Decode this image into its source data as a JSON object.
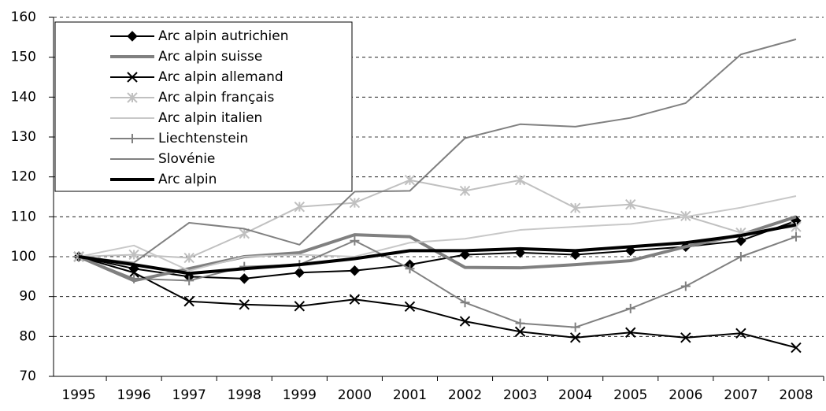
{
  "chart_data": {
    "type": "line",
    "categories": [
      "1995",
      "1996",
      "1997",
      "1998",
      "1999",
      "2000",
      "2001",
      "2002",
      "2003",
      "2004",
      "2005",
      "2006",
      "2007",
      "2008"
    ],
    "ylim": [
      70,
      160
    ],
    "yticks": [
      70,
      80,
      90,
      100,
      110,
      120,
      130,
      140,
      150,
      160
    ],
    "grid": true,
    "legend": "top-left",
    "series": [
      {
        "name": "Arc alpin autrichien",
        "color": "#000000",
        "width": 2,
        "marker": "diamond",
        "values": [
          100,
          97,
          95,
          94.5,
          96,
          96.5,
          98,
          100.5,
          101,
          100.5,
          101.5,
          102.5,
          104,
          109
        ]
      },
      {
        "name": "Arc alpin suisse",
        "color": "#808080",
        "width": 4,
        "marker": "none",
        "values": [
          100,
          94,
          97,
          100,
          101,
          105.5,
          105,
          97.3,
          97.2,
          98,
          99,
          102.5,
          105.5,
          110
        ]
      },
      {
        "name": "Arc alpin allemand",
        "color": "#000000",
        "width": 2,
        "marker": "x",
        "values": [
          100,
          96,
          88.8,
          88,
          87.6,
          89.3,
          87.5,
          83.8,
          81.2,
          79.7,
          81,
          79.7,
          80.8,
          77.2
        ]
      },
      {
        "name": "Arc alpin français",
        "color": "#c0c0c0",
        "width": 2,
        "marker": "asterisk",
        "values": [
          100,
          100.5,
          99.7,
          105.8,
          112.5,
          113.5,
          119.2,
          116.5,
          119.2,
          112.2,
          113.1,
          110.2,
          106,
          107.5
        ]
      },
      {
        "name": "Arc alpin italien",
        "color": "#c8c8c8",
        "width": 2,
        "marker": "none",
        "values": [
          100,
          102.8,
          96.5,
          100,
          100.5,
          100,
          103.5,
          104.5,
          106.7,
          107.5,
          108.2,
          110,
          112.3,
          115.2
        ]
      },
      {
        "name": "Liechtenstein",
        "color": "#808080",
        "width": 2,
        "marker": "plus",
        "values": [
          100,
          94.5,
          94,
          97.5,
          98,
          104,
          97,
          88.5,
          83.3,
          82.3,
          87,
          92.6,
          100,
          105
        ]
      },
      {
        "name": "Slovénie",
        "color": "#808080",
        "width": 2,
        "marker": "none",
        "values": [
          100,
          98.5,
          108.5,
          107,
          103,
          116.3,
          116.5,
          129.7,
          133.2,
          132.6,
          134.8,
          138.5,
          150.7,
          154.5
        ]
      },
      {
        "name": "Arc alpin",
        "color": "#000000",
        "width": 4,
        "marker": "none",
        "values": [
          100,
          98,
          95.8,
          97,
          98,
          99.5,
          101.5,
          101.5,
          102,
          101.5,
          102.5,
          103.5,
          105.3,
          108
        ]
      }
    ]
  }
}
